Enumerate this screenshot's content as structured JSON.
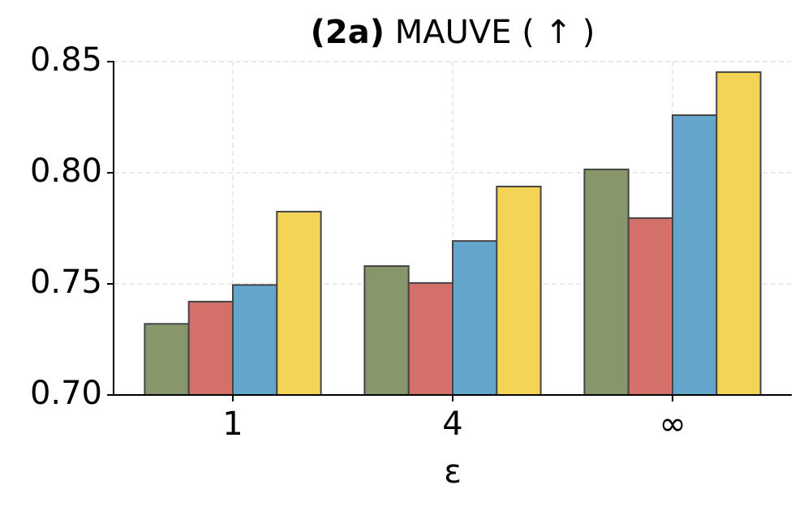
{
  "chart_data": {
    "type": "bar",
    "title_prefix": "(2a)",
    "title": "MAUVE ( ↑ )",
    "x_label": "ε",
    "categories": [
      "1",
      "4",
      "∞"
    ],
    "series": [
      {
        "color": "#87966b",
        "values": [
          0.732,
          0.758,
          0.8015
        ]
      },
      {
        "color": "#d4706a",
        "values": [
          0.742,
          0.7504,
          0.7796
        ]
      },
      {
        "color": "#64a5cc",
        "values": [
          0.7495,
          0.7693,
          0.8259
        ]
      },
      {
        "color": "#f4d456",
        "values": [
          0.7825,
          0.7938,
          0.8453
        ]
      }
    ],
    "ylim": [
      0.7,
      0.85
    ],
    "yticks": [
      {
        "value": 0.7,
        "label": "0.70"
      },
      0.75,
      {
        "value": 0.8,
        "label": "0.80"
      },
      0.85
    ],
    "grid": true
  }
}
